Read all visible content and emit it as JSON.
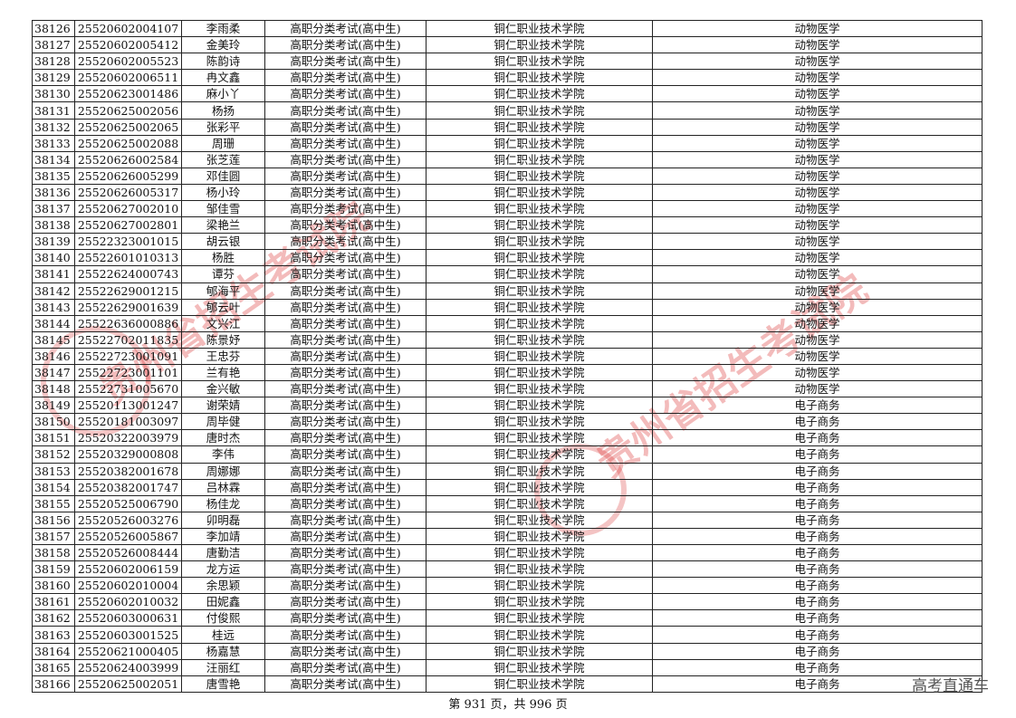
{
  "table": {
    "rows": [
      [
        "38126",
        "25520602004107",
        "李雨柔",
        "高职分类考试(高中生)",
        "铜仁职业技术学院",
        "动物医学"
      ],
      [
        "38127",
        "25520602005412",
        "金美玲",
        "高职分类考试(高中生)",
        "铜仁职业技术学院",
        "动物医学"
      ],
      [
        "38128",
        "25520602005523",
        "陈韵诗",
        "高职分类考试(高中生)",
        "铜仁职业技术学院",
        "动物医学"
      ],
      [
        "38129",
        "25520602006511",
        "冉文鑫",
        "高职分类考试(高中生)",
        "铜仁职业技术学院",
        "动物医学"
      ],
      [
        "38130",
        "25520623001486",
        "麻小丫",
        "高职分类考试(高中生)",
        "铜仁职业技术学院",
        "动物医学"
      ],
      [
        "38131",
        "25520625002056",
        "杨扬",
        "高职分类考试(高中生)",
        "铜仁职业技术学院",
        "动物医学"
      ],
      [
        "38132",
        "25520625002065",
        "张彩平",
        "高职分类考试(高中生)",
        "铜仁职业技术学院",
        "动物医学"
      ],
      [
        "38133",
        "25520625002088",
        "周珊",
        "高职分类考试(高中生)",
        "铜仁职业技术学院",
        "动物医学"
      ],
      [
        "38134",
        "25520626002584",
        "张芝莲",
        "高职分类考试(高中生)",
        "铜仁职业技术学院",
        "动物医学"
      ],
      [
        "38135",
        "25520626005299",
        "邓佳圆",
        "高职分类考试(高中生)",
        "铜仁职业技术学院",
        "动物医学"
      ],
      [
        "38136",
        "25520626005317",
        "杨小玲",
        "高职分类考试(高中生)",
        "铜仁职业技术学院",
        "动物医学"
      ],
      [
        "38137",
        "25520627002010",
        "邹佳雪",
        "高职分类考试(高中生)",
        "铜仁职业技术学院",
        "动物医学"
      ],
      [
        "38138",
        "25520627002801",
        "梁艳兰",
        "高职分类考试(高中生)",
        "铜仁职业技术学院",
        "动物医学"
      ],
      [
        "38139",
        "25522323001015",
        "胡云银",
        "高职分类考试(高中生)",
        "铜仁职业技术学院",
        "动物医学"
      ],
      [
        "38140",
        "25522601010313",
        "杨胜",
        "高职分类考试(高中生)",
        "铜仁职业技术学院",
        "动物医学"
      ],
      [
        "38141",
        "25522624000743",
        "谭芬",
        "高职分类考试(高中生)",
        "铜仁职业技术学院",
        "动物医学"
      ],
      [
        "38142",
        "25522629001215",
        "郇海平",
        "高职分类考试(高中生)",
        "铜仁职业技术学院",
        "动物医学"
      ],
      [
        "38143",
        "25522629001639",
        "郇云叶",
        "高职分类考试(高中生)",
        "铜仁职业技术学院",
        "动物医学"
      ],
      [
        "38144",
        "25522636000886",
        "文兴江",
        "高职分类考试(高中生)",
        "铜仁职业技术学院",
        "动物医学"
      ],
      [
        "38145",
        "25522702011835",
        "陈景妤",
        "高职分类考试(高中生)",
        "铜仁职业技术学院",
        "动物医学"
      ],
      [
        "38146",
        "25522723001091",
        "王忠芬",
        "高职分类考试(高中生)",
        "铜仁职业技术学院",
        "动物医学"
      ],
      [
        "38147",
        "25522723001101",
        "兰有艳",
        "高职分类考试(高中生)",
        "铜仁职业技术学院",
        "动物医学"
      ],
      [
        "38148",
        "25522731005670",
        "金兴敏",
        "高职分类考试(高中生)",
        "铜仁职业技术学院",
        "动物医学"
      ],
      [
        "38149",
        "25520113001247",
        "谢荣婧",
        "高职分类考试(高中生)",
        "铜仁职业技术学院",
        "电子商务"
      ],
      [
        "38150",
        "25520181003097",
        "周毕健",
        "高职分类考试(高中生)",
        "铜仁职业技术学院",
        "电子商务"
      ],
      [
        "38151",
        "25520322003979",
        "唐时杰",
        "高职分类考试(高中生)",
        "铜仁职业技术学院",
        "电子商务"
      ],
      [
        "38152",
        "25520329000808",
        "李伟",
        "高职分类考试(高中生)",
        "铜仁职业技术学院",
        "电子商务"
      ],
      [
        "38153",
        "25520382001678",
        "周娜娜",
        "高职分类考试(高中生)",
        "铜仁职业技术学院",
        "电子商务"
      ],
      [
        "38154",
        "25520382001747",
        "吕林霖",
        "高职分类考试(高中生)",
        "铜仁职业技术学院",
        "电子商务"
      ],
      [
        "38155",
        "25520525006790",
        "杨佳龙",
        "高职分类考试(高中生)",
        "铜仁职业技术学院",
        "电子商务"
      ],
      [
        "38156",
        "25520526003276",
        "卯明磊",
        "高职分类考试(高中生)",
        "铜仁职业技术学院",
        "电子商务"
      ],
      [
        "38157",
        "25520526005867",
        "李加靖",
        "高职分类考试(高中生)",
        "铜仁职业技术学院",
        "电子商务"
      ],
      [
        "38158",
        "25520526008444",
        "唐勤洁",
        "高职分类考试(高中生)",
        "铜仁职业技术学院",
        "电子商务"
      ],
      [
        "38159",
        "25520602006159",
        "龙方运",
        "高职分类考试(高中生)",
        "铜仁职业技术学院",
        "电子商务"
      ],
      [
        "38160",
        "25520602010004",
        "余思颖",
        "高职分类考试(高中生)",
        "铜仁职业技术学院",
        "电子商务"
      ],
      [
        "38161",
        "25520602010032",
        "田妮鑫",
        "高职分类考试(高中生)",
        "铜仁职业技术学院",
        "电子商务"
      ],
      [
        "38162",
        "25520603000631",
        "付俊熙",
        "高职分类考试(高中生)",
        "铜仁职业技术学院",
        "电子商务"
      ],
      [
        "38163",
        "25520603001525",
        "桂远",
        "高职分类考试(高中生)",
        "铜仁职业技术学院",
        "电子商务"
      ],
      [
        "38164",
        "25520621000405",
        "杨嘉慧",
        "高职分类考试(高中生)",
        "铜仁职业技术学院",
        "电子商务"
      ],
      [
        "38165",
        "25520624003999",
        "汪丽红",
        "高职分类考试(高中生)",
        "铜仁职业技术学院",
        "电子商务"
      ],
      [
        "38166",
        "25520625002051",
        "唐雪艳",
        "高职分类考试(高中生)",
        "铜仁职业技术学院",
        "电子商务"
      ]
    ]
  },
  "footer": {
    "page_text": "第 931 页，共 996 页"
  },
  "brand": {
    "text": "高考直通车"
  },
  "watermark": {
    "text": "贵州省招生考试院",
    "color": "#dc3c3c"
  }
}
